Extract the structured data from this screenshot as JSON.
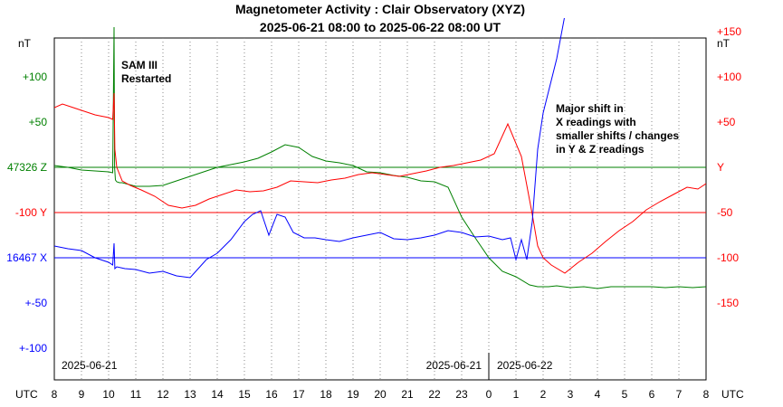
{
  "chart_data": {
    "type": "line",
    "title": "Magnetometer Activity : Clair Observatory (XYZ)",
    "subtitle": "2025-06-21 08:00 to 2025-06-22 08:00 UT",
    "x_axis": {
      "unit_label": "UTC",
      "tick_labels": [
        "8",
        "9",
        "10",
        "11",
        "12",
        "13",
        "14",
        "15",
        "16",
        "17",
        "18",
        "19",
        "20",
        "21",
        "22",
        "23",
        "0",
        "1",
        "2",
        "3",
        "4",
        "5",
        "6",
        "7",
        "8"
      ],
      "date_labels": [
        "2025-06-21",
        "2025-06-21",
        "2025-06-22"
      ],
      "range_hours": [
        0,
        24
      ]
    },
    "left_axis": {
      "unit": "nT",
      "labels": [
        {
          "text": "+100",
          "color": "#008000",
          "offset": 100
        },
        {
          "text": "+50",
          "color": "#008000",
          "offset": 50
        },
        {
          "text": "47326 Z",
          "color": "#008000",
          "offset": 0
        },
        {
          "text": "-100  Y",
          "color": "#ff0000",
          "offset": -50
        },
        {
          "text": "16467 X",
          "color": "#0000ff",
          "offset": -100
        },
        {
          "text": "+-50",
          "color": "#0000ff",
          "offset": -150
        },
        {
          "text": "+-100",
          "color": "#0000ff",
          "offset": -200
        }
      ]
    },
    "right_axis": {
      "unit": "nT",
      "labels": [
        {
          "text": "+150",
          "value": 150
        },
        {
          "text": "+100",
          "value": 100
        },
        {
          "text": "+50",
          "value": 50
        },
        {
          "text": "Y",
          "value": 0
        },
        {
          "text": "-50",
          "value": -50
        },
        {
          "text": "-100",
          "value": -100
        },
        {
          "text": "-150",
          "value": -150
        }
      ],
      "color": "#ff0000"
    },
    "baselines": [
      {
        "name": "Z",
        "value": 47326,
        "color": "#008000"
      },
      {
        "name": "Y",
        "value": -100,
        "color": "#ff0000"
      },
      {
        "name": "X",
        "value": 16467,
        "color": "#0000ff"
      }
    ],
    "ylim_display": [
      -230,
      160
    ],
    "series": [
      {
        "name": "Z",
        "color": "#008000",
        "baseline_display": 0,
        "x": [
          0,
          0.5,
          1,
          1.5,
          2,
          2.15,
          2.2,
          2.22,
          2.25,
          2.3,
          2.4,
          2.5,
          3,
          3.5,
          4,
          4.5,
          5,
          5.5,
          6,
          6.5,
          7,
          7.5,
          8,
          8.5,
          9,
          9.5,
          10,
          10.5,
          11,
          11.5,
          12,
          12.5,
          13,
          13.5,
          14,
          14.5,
          15,
          15.5,
          16,
          16.5,
          17,
          17.5,
          17.8,
          18,
          18.2,
          18.5,
          19,
          19.5,
          20,
          20.5,
          21,
          21.5,
          22,
          22.5,
          23,
          23.5,
          24
        ],
        "values": [
          2,
          0,
          -3,
          -4,
          -5,
          -6,
          155,
          0,
          -14,
          -16,
          -17,
          -17,
          -21,
          -21,
          -20,
          -15,
          -10,
          -5,
          0,
          3,
          6,
          10,
          17,
          25,
          22,
          12,
          7,
          5,
          2,
          -5,
          -6,
          -9,
          -11,
          -15,
          -16,
          -22,
          -55,
          -78,
          -100,
          -115,
          -121,
          -130,
          -132,
          -132,
          -132,
          -131,
          -133,
          -132,
          -134,
          -132,
          -132,
          -132,
          -132,
          -133,
          -132,
          -133,
          -132
        ]
      },
      {
        "name": "Y",
        "color": "#ff0000",
        "baseline_display": -50,
        "x": [
          0,
          0.3,
          0.7,
          1.0,
          1.5,
          2.0,
          2.15,
          2.2,
          2.23,
          2.3,
          2.5,
          2.8,
          3.2,
          3.7,
          4.2,
          4.7,
          5.2,
          5.7,
          6.2,
          6.7,
          7.2,
          7.7,
          8.2,
          8.7,
          9.2,
          9.7,
          10.2,
          10.7,
          11.2,
          11.7,
          12.2,
          12.7,
          13.2,
          13.7,
          14.2,
          14.7,
          15.2,
          15.7,
          16.2,
          16.7,
          17.2,
          17.4,
          17.6,
          17.8,
          18.0,
          18.3,
          18.8,
          19.3,
          19.8,
          20.3,
          20.8,
          21.3,
          21.8,
          22.3,
          22.8,
          23.3,
          23.7,
          24
        ],
        "values": [
          66,
          70,
          66,
          63,
          58,
          55,
          53,
          82,
          20,
          0,
          -15,
          -20,
          -25,
          -32,
          -42,
          -45,
          -42,
          -35,
          -30,
          -25,
          -27,
          -26,
          -22,
          -15,
          -16,
          -17,
          -14,
          -12,
          -8,
          -6,
          -8,
          -10,
          -7,
          -4,
          0,
          2,
          5,
          8,
          15,
          48,
          12,
          -20,
          -52,
          -87,
          -100,
          -108,
          -117,
          -105,
          -95,
          -82,
          -70,
          -60,
          -47,
          -38,
          -30,
          -22,
          -24,
          -18
        ]
      },
      {
        "name": "X",
        "color": "#0000ff",
        "baseline_display": -100,
        "x": [
          0,
          0.5,
          1,
          1.5,
          2,
          2.15,
          2.2,
          2.23,
          2.3,
          2.6,
          3,
          3.5,
          4,
          4.5,
          5,
          5.3,
          5.6,
          6,
          6.5,
          7,
          7.3,
          7.6,
          7.9,
          8.2,
          8.5,
          8.8,
          9.2,
          9.6,
          10,
          10.5,
          11,
          11.5,
          12,
          12.5,
          13,
          13.5,
          14,
          14.5,
          15,
          15.5,
          16,
          16.5,
          16.8,
          17.0,
          17.2,
          17.4,
          17.6,
          17.8,
          18,
          18.5,
          19,
          20
        ],
        "values": [
          -87,
          -90,
          -92,
          -100,
          -105,
          -108,
          -84,
          -112,
          -110,
          -112,
          -113,
          -117,
          -115,
          -120,
          -122,
          -112,
          -102,
          -95,
          -80,
          -60,
          -52,
          -48,
          -75,
          -52,
          -55,
          -72,
          -78,
          -78,
          -80,
          -82,
          -78,
          -75,
          -72,
          -79,
          -80,
          -78,
          -75,
          -70,
          -72,
          -77,
          -76,
          -80,
          -78,
          -102,
          -80,
          -102,
          -60,
          20,
          60,
          120,
          200,
          260
        ]
      }
    ],
    "annotations": [
      {
        "lines": [
          "SAM III",
          "Restarted"
        ],
        "x": 2.3
      },
      {
        "lines": [
          "Major shift in",
          "X readings with",
          "smaller shifts / changes",
          "in Y & Z readings"
        ],
        "x": 18.3
      }
    ],
    "grid": true
  }
}
